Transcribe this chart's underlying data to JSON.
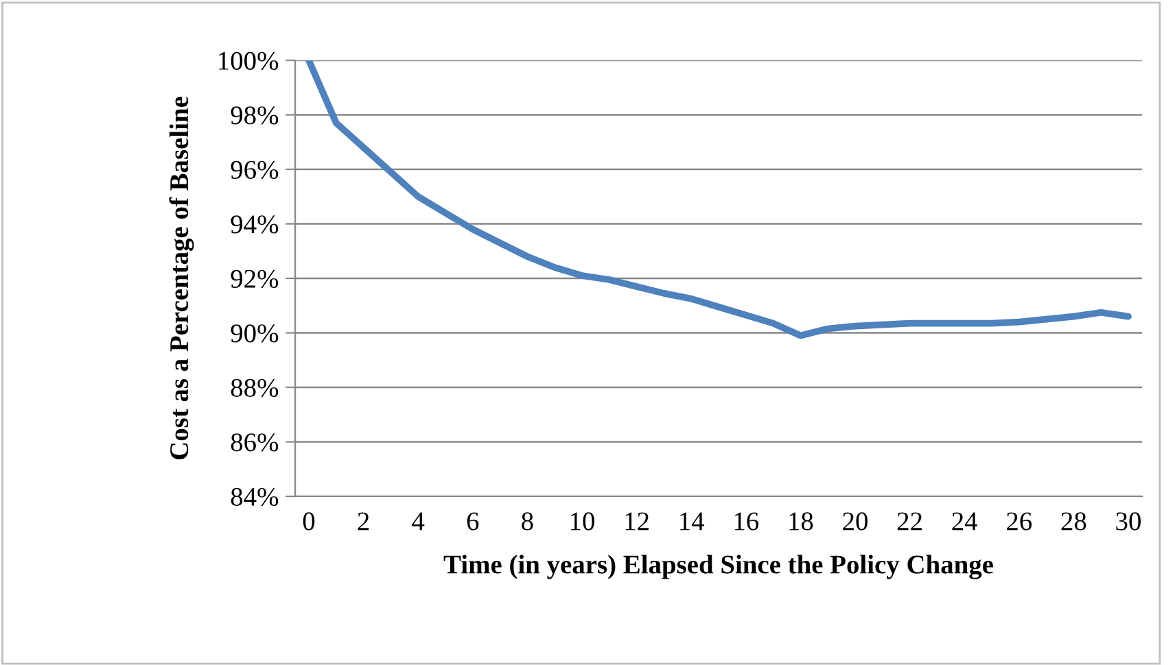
{
  "chart_data": {
    "type": "line",
    "xlabel": "Time (in years) Elapsed Since the Policy Change",
    "ylabel": "Cost as a Percentage of Baseline",
    "x": [
      0,
      1,
      2,
      3,
      4,
      5,
      6,
      7,
      8,
      9,
      10,
      11,
      12,
      13,
      14,
      15,
      16,
      17,
      18,
      19,
      20,
      21,
      22,
      23,
      24,
      25,
      26,
      27,
      28,
      29,
      30
    ],
    "series": [
      {
        "color": "#4f81bd",
        "values": [
          100,
          97.7,
          96.8,
          95.9,
          95.0,
          94.4,
          93.8,
          93.3,
          92.8,
          92.4,
          92.1,
          91.95,
          91.7,
          91.45,
          91.25,
          90.95,
          90.65,
          90.35,
          89.9,
          90.15,
          90.25,
          90.3,
          90.35,
          90.35,
          90.35,
          90.35,
          90.4,
          90.5,
          90.6,
          90.75,
          90.6
        ]
      }
    ],
    "xlim": [
      -0.5,
      30.5
    ],
    "xticks": [
      0,
      2,
      4,
      6,
      8,
      10,
      12,
      14,
      16,
      18,
      20,
      22,
      24,
      26,
      28,
      30
    ],
    "ylim": [
      84,
      100
    ],
    "yticks": [
      {
        "value": 84,
        "label": "84%"
      },
      {
        "value": 86,
        "label": "86%"
      },
      {
        "value": 88,
        "label": "88%"
      },
      {
        "value": 90,
        "label": "90%"
      },
      {
        "value": 92,
        "label": "92%"
      },
      {
        "value": 94,
        "label": "94%"
      },
      {
        "value": 96,
        "label": "96%"
      },
      {
        "value": 98,
        "label": "98%"
      },
      {
        "value": 100,
        "label": "100%"
      }
    ],
    "grid": "y",
    "legend": false,
    "marker": "none",
    "line_style": "solid"
  }
}
